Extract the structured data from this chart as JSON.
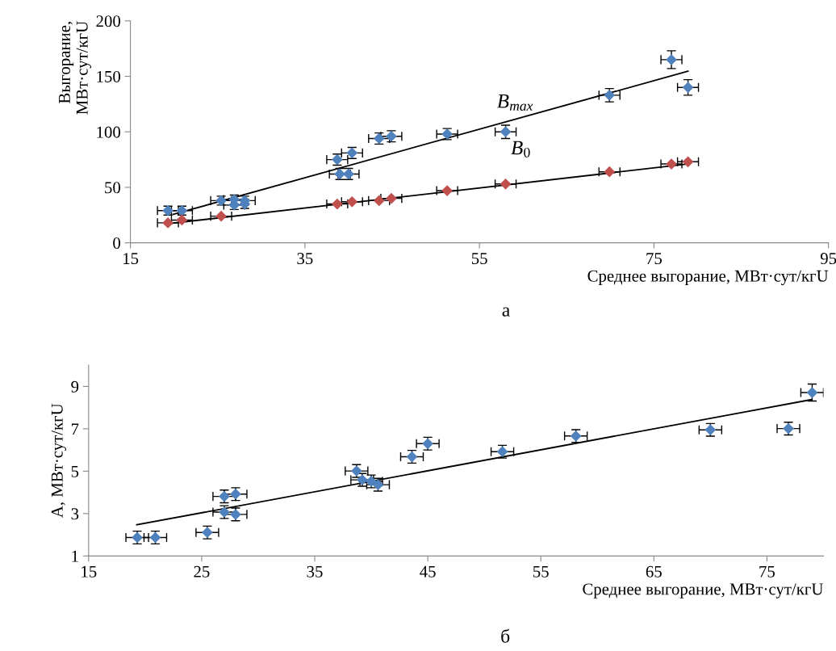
{
  "chart_data": [
    {
      "type": "scatter",
      "xlabel": "Среднее выгорание, МВт·сут/кгU",
      "ylabel": "Выгорание,\nМВт·сут/кгU",
      "xlim": [
        15,
        95
      ],
      "xticks": [
        15,
        35,
        55,
        75,
        95
      ],
      "ylim": [
        0,
        200
      ],
      "yticks": [
        0,
        50,
        100,
        150,
        200
      ],
      "grid": false,
      "legend": false,
      "marker": "diamond",
      "series": [
        {
          "type": "scatter",
          "color": "#4f81bd",
          "x": [
            19.3,
            20.9,
            25.4,
            26.9,
            26.9,
            28.1,
            28.1,
            38.7,
            40.4,
            39.0,
            40.0,
            43.5,
            44.9,
            51.3,
            58.0,
            69.9,
            77.0,
            78.9
          ],
          "values": [
            29,
            29,
            38,
            39,
            34,
            38,
            35,
            75,
            81,
            62,
            62,
            94,
            96,
            98,
            100,
            133,
            165,
            140
          ],
          "xerrors": [
            1.2,
            1.2,
            1.2,
            1.2,
            1.2,
            1.2,
            null,
            1.2,
            1.2,
            1.2,
            1.2,
            1.2,
            1.2,
            1.2,
            1.2,
            1.2,
            1.2,
            1.2
          ],
          "errors": [
            4,
            4,
            4,
            4,
            4,
            4,
            4,
            5,
            5,
            5,
            5,
            5,
            5,
            5,
            6,
            6,
            8,
            7
          ]
        },
        {
          "type": "scatter",
          "color": "#c0504d",
          "x": [
            19.3,
            20.9,
            25.4,
            38.7,
            40.4,
            43.5,
            44.9,
            51.3,
            58.0,
            69.9,
            77.0,
            78.9
          ],
          "values": [
            18,
            20.5,
            24,
            35,
            37,
            38,
            40,
            47,
            53,
            64,
            71,
            73
          ],
          "xerrors": [
            1.2,
            1.2,
            1.2,
            1.2,
            1.2,
            1.2,
            1.2,
            1.2,
            1.2,
            1.2,
            1.2,
            1.2
          ]
        },
        {
          "type": "line",
          "marker": "none",
          "color": "#000000",
          "x": [
            19.9,
            78.9
          ],
          "values": [
            25.6,
            154.6
          ]
        },
        {
          "type": "line",
          "marker": "none",
          "color": "#000000",
          "x": [
            19.3,
            78.9
          ],
          "values": [
            17.2,
            71
          ]
        }
      ],
      "annotations": [
        "B$_{max}$",
        "B$_{0}$",
        "а"
      ]
    },
    {
      "type": "scatter",
      "xlabel": "Среднее выгорание, МВт·сут/кгU",
      "ylabel": "A, МВт·сут/кгU",
      "xlim": [
        15,
        80
      ],
      "xticks": [
        15,
        25,
        35,
        45,
        55,
        65,
        75
      ],
      "ylim": [
        1,
        10
      ],
      "yticks": [
        1,
        3,
        5,
        7,
        9
      ],
      "grid": false,
      "legend": false,
      "marker": "diamond",
      "series": [
        {
          "type": "scatter",
          "color": "#4f81bd",
          "x": [
            19.3,
            20.9,
            25.5,
            27.0,
            28.0,
            27.0,
            28.0,
            38.7,
            39.2,
            40.0,
            40.6,
            43.6,
            45.0,
            51.6,
            58.1,
            70.0,
            76.9,
            79.0
          ],
          "values": [
            1.87,
            1.87,
            2.11,
            3.81,
            3.92,
            3.07,
            2.96,
            5.01,
            4.59,
            4.52,
            4.36,
            5.68,
            6.3,
            5.92,
            6.66,
            6.95,
            7.01,
            8.71
          ],
          "xerrors": [
            1,
            1,
            1,
            1,
            1,
            1,
            1,
            1,
            1,
            1,
            1,
            1,
            1,
            1,
            1,
            1,
            1,
            1
          ],
          "errors": [
            0.3,
            0.3,
            0.3,
            0.3,
            0.3,
            0.3,
            0.3,
            0.3,
            0.3,
            0.3,
            0.3,
            0.3,
            0.3,
            0.3,
            0.3,
            0.3,
            0.3,
            0.4
          ]
        },
        {
          "type": "line",
          "marker": "none",
          "color": "#000000",
          "x": [
            19.26,
            78.97
          ],
          "values": [
            2.47,
            8.38
          ]
        }
      ],
      "annotations": [
        "б"
      ]
    }
  ]
}
